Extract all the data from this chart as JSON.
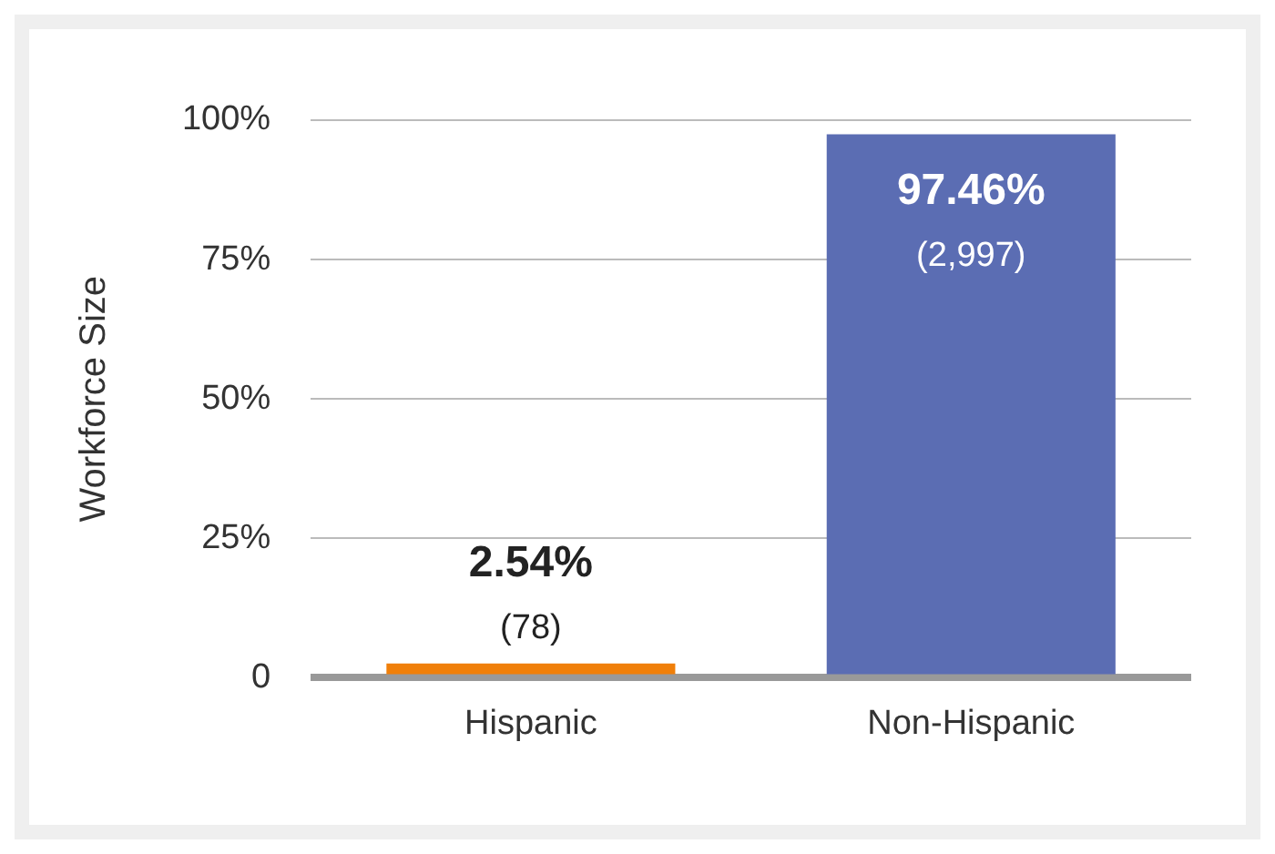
{
  "chart_data": {
    "type": "bar",
    "ylabel": "Workforce Size",
    "categories": [
      "Hispanic",
      "Non-Hispanic"
    ],
    "values": [
      2.54,
      97.46
    ],
    "colors": [
      "#f07f09",
      "#5b6db3"
    ],
    "value_labels": [
      "2.54%",
      "97.46%"
    ],
    "annotations": [
      {
        "text": "(78)",
        "x": "Hispanic",
        "y": 2.54
      },
      {
        "text": "(2,997)",
        "x": "Non-Hispanic",
        "y": 97.46
      }
    ],
    "ylim": [
      0,
      100
    ],
    "yticks": [
      {
        "value": 0,
        "label": "0"
      },
      {
        "value": 25,
        "label": "25%"
      },
      {
        "value": 50,
        "label": "50%"
      },
      {
        "value": 75,
        "label": "75%"
      },
      {
        "value": 100,
        "label": "100%"
      }
    ],
    "grid": "y",
    "legend": false
  }
}
